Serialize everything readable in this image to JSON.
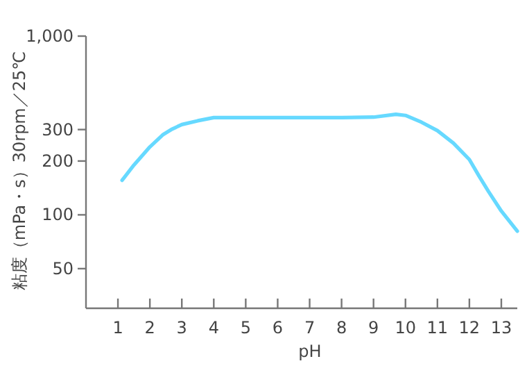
{
  "chart_data": {
    "type": "line",
    "xlabel": "pH",
    "ylabel": "粘度（mPa・s）30rpm／25℃",
    "x": [
      1.13,
      1.5,
      2,
      2.4,
      2.7,
      3,
      3.5,
      4,
      5,
      6,
      7,
      8,
      9,
      9.7,
      10,
      10.5,
      11,
      11.5,
      12,
      12.3,
      12.6,
      13,
      13.5
    ],
    "series": [
      {
        "color": "#66d9ff",
        "values": [
          156,
          190,
          240,
          280,
          302,
          320,
          336,
          350,
          350,
          350,
          350,
          350,
          352,
          365,
          360,
          330,
          296,
          252,
          204,
          165,
          135,
          105,
          81
        ]
      }
    ],
    "xlim": [
      0,
      13.5
    ],
    "xticks": [
      1,
      2,
      3,
      4,
      5,
      6,
      7,
      8,
      9,
      10,
      11,
      12,
      13
    ],
    "ylim": [
      30,
      1000
    ],
    "yticks": [
      50,
      100,
      200,
      300,
      {
        "value": 1000,
        "label": "1,000"
      }
    ],
    "log": "y",
    "grid": false,
    "marker": "none",
    "line_style": "solid"
  }
}
